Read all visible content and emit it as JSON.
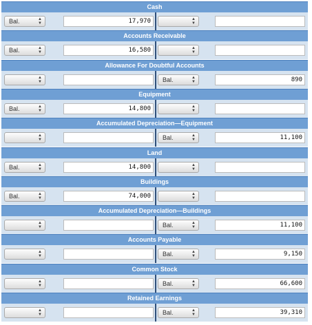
{
  "accounts": [
    {
      "title": "Cash",
      "left_select": "Bal.",
      "left_value": "17,970",
      "right_select": "",
      "right_value": ""
    },
    {
      "title": "Accounts Receivable",
      "left_select": "Bal.",
      "left_value": "16,580",
      "right_select": "",
      "right_value": ""
    },
    {
      "title": "Allowance For Doubtful Accounts",
      "left_select": "",
      "left_value": "",
      "right_select": "Bal.",
      "right_value": "890"
    },
    {
      "title": "Equipment",
      "left_select": "Bal.",
      "left_value": "14,800",
      "right_select": "",
      "right_value": ""
    },
    {
      "title": "Accumulated Depreciation—Equipment",
      "left_select": "",
      "left_value": "",
      "right_select": "Bal.",
      "right_value": "11,100"
    },
    {
      "title": "Land",
      "left_select": "Bal.",
      "left_value": "14,800",
      "right_select": "",
      "right_value": ""
    },
    {
      "title": "Buildings",
      "left_select": "Bal.",
      "left_value": "74,000",
      "right_select": "",
      "right_value": ""
    },
    {
      "title": "Accumulated Depreciation—Buildings",
      "left_select": "",
      "left_value": "",
      "right_select": "Bal.",
      "right_value": "11,100"
    },
    {
      "title": "Accounts Payable",
      "left_select": "",
      "left_value": "",
      "right_select": "Bal.",
      "right_value": "9,150"
    },
    {
      "title": "Common Stock",
      "left_select": "",
      "left_value": "",
      "right_select": "Bal.",
      "right_value": "66,600"
    },
    {
      "title": "Retained Earnings",
      "left_select": "",
      "left_value": "",
      "right_select": "Bal.",
      "right_value": "39,310"
    }
  ],
  "colors": {
    "header": "#6f9fd4",
    "row": "#d6e3f0",
    "divider": "#2f4f7a"
  },
  "icons": {
    "select_arrows": "up-down-chevron-icon"
  }
}
